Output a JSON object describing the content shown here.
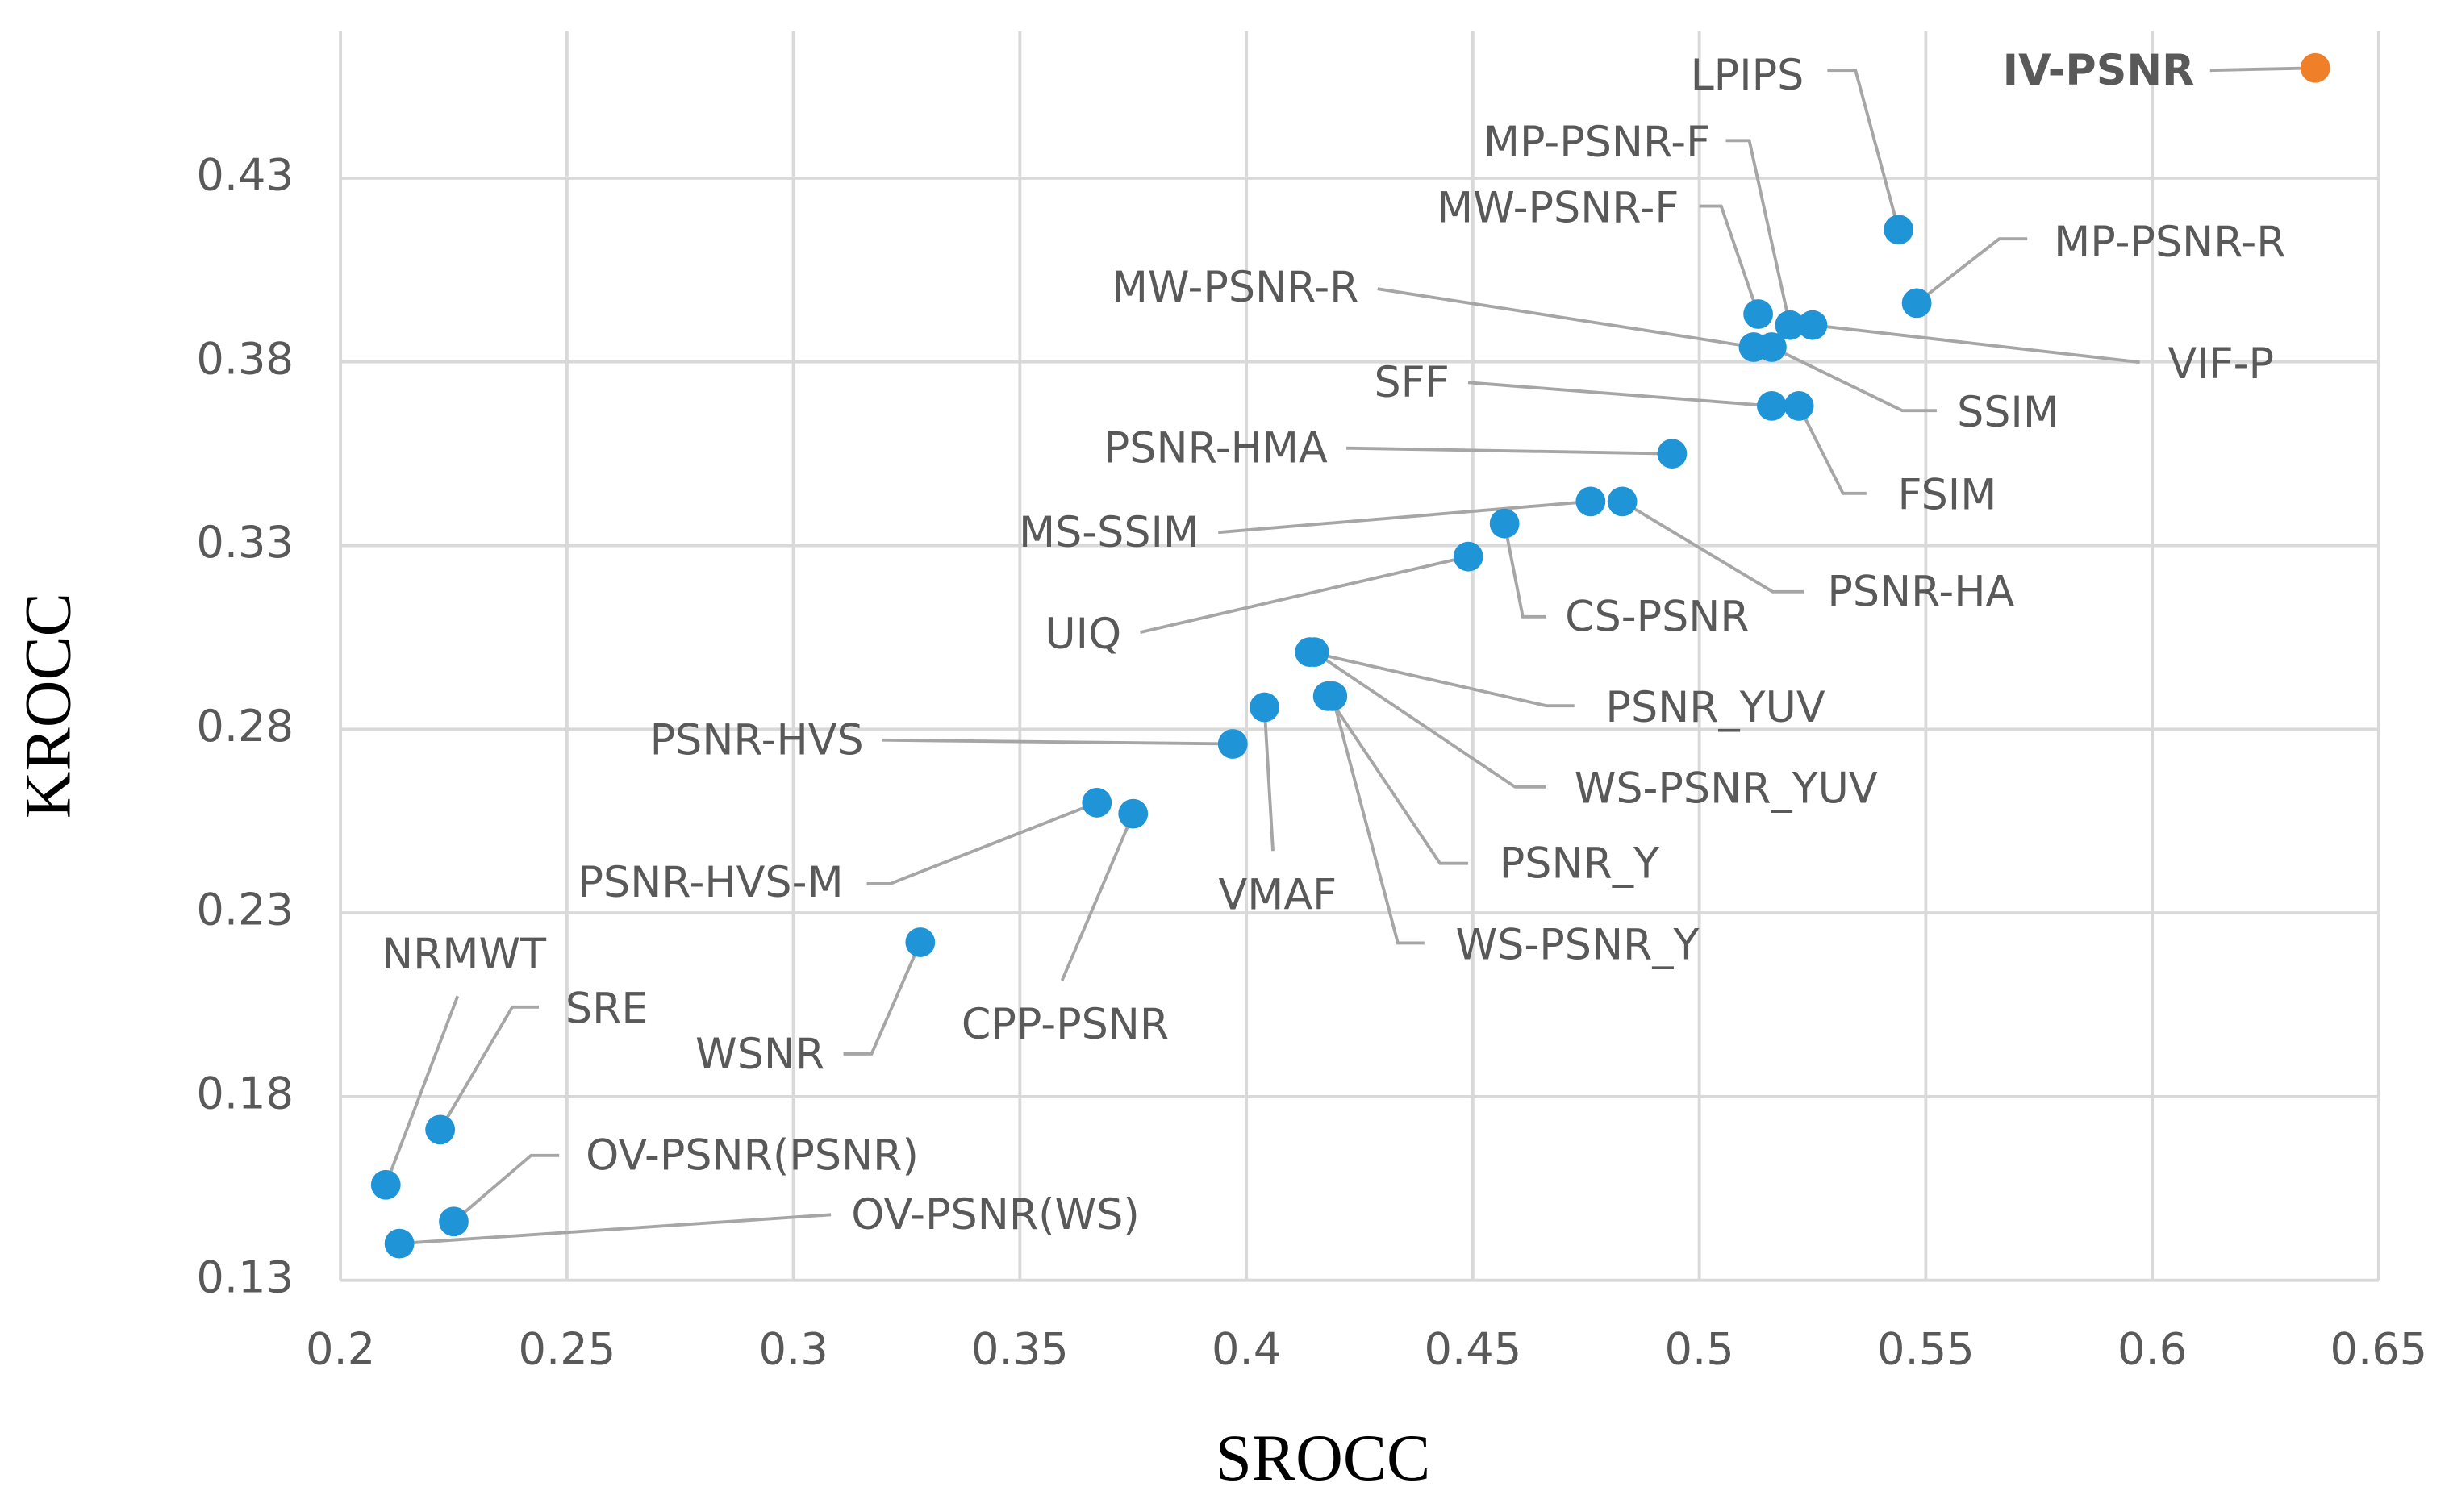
{
  "chart_data": {
    "type": "scatter",
    "x_label": "SROCC",
    "y_label": "KROCC",
    "xlim": [
      0.2,
      0.65
    ],
    "ylim": [
      0.13,
      0.47
    ],
    "xticks": [
      0.2,
      0.25,
      0.3,
      0.35,
      0.4,
      0.45,
      0.5,
      0.55,
      0.6,
      0.65
    ],
    "yticks": [
      0.13,
      0.18,
      0.23,
      0.28,
      0.33,
      0.38,
      0.43
    ],
    "grid": true,
    "series": [
      {
        "name": "IV-PSNR",
        "color": "#f07f2a",
        "x": [
          0.636
        ],
        "y": [
          0.46
        ]
      },
      {
        "name": "LPIPS",
        "color": "#1f94d6",
        "x": [
          0.544
        ],
        "y": [
          0.416
        ]
      },
      {
        "name": "MP-PSNR-F",
        "color": "#1f94d6",
        "x": [
          0.52
        ],
        "y": [
          0.39
        ]
      },
      {
        "name": "MW-PSNR-F",
        "color": "#1f94d6",
        "x": [
          0.513
        ],
        "y": [
          0.393
        ]
      },
      {
        "name": "MP-PSNR-R",
        "color": "#1f94d6",
        "x": [
          0.548
        ],
        "y": [
          0.396
        ]
      },
      {
        "name": "MW-PSNR-R",
        "color": "#1f94d6",
        "x": [
          0.512
        ],
        "y": [
          0.384
        ]
      },
      {
        "name": "VIF-P",
        "color": "#1f94d6",
        "x": [
          0.525
        ],
        "y": [
          0.39
        ]
      },
      {
        "name": "SSIM",
        "color": "#1f94d6",
        "x": [
          0.516
        ],
        "y": [
          0.384
        ]
      },
      {
        "name": "SFF",
        "color": "#1f94d6",
        "x": [
          0.516
        ],
        "y": [
          0.368
        ]
      },
      {
        "name": "FSIM",
        "color": "#1f94d6",
        "x": [
          0.522
        ],
        "y": [
          0.368
        ]
      },
      {
        "name": "PSNR-HMA",
        "color": "#1f94d6",
        "x": [
          0.494
        ],
        "y": [
          0.355
        ]
      },
      {
        "name": "PSNR-HA",
        "color": "#1f94d6",
        "x": [
          0.483
        ],
        "y": [
          0.342
        ]
      },
      {
        "name": "MS-SSIM",
        "color": "#1f94d6",
        "x": [
          0.476
        ],
        "y": [
          0.342
        ]
      },
      {
        "name": "CS-PSNR",
        "color": "#1f94d6",
        "x": [
          0.457
        ],
        "y": [
          0.336
        ]
      },
      {
        "name": "UIQ",
        "color": "#1f94d6",
        "x": [
          0.449
        ],
        "y": [
          0.327
        ]
      },
      {
        "name": "PSNR_YUV",
        "color": "#1f94d6",
        "x": [
          0.414
        ],
        "y": [
          0.301
        ]
      },
      {
        "name": "WS-PSNR_YUV",
        "color": "#1f94d6",
        "x": [
          0.415
        ],
        "y": [
          0.301
        ]
      },
      {
        "name": "PSNR_Y",
        "color": "#1f94d6",
        "x": [
          0.418
        ],
        "y": [
          0.289
        ]
      },
      {
        "name": "WS-PSNR_Y",
        "color": "#1f94d6",
        "x": [
          0.419
        ],
        "y": [
          0.289
        ]
      },
      {
        "name": "VMAF",
        "color": "#1f94d6",
        "x": [
          0.404
        ],
        "y": [
          0.286
        ]
      },
      {
        "name": "PSNR-HVS",
        "color": "#1f94d6",
        "x": [
          0.397
        ],
        "y": [
          0.276
        ]
      },
      {
        "name": "PSNR-HVS-M",
        "color": "#1f94d6",
        "x": [
          0.367
        ],
        "y": [
          0.26
        ]
      },
      {
        "name": "CPP-PSNR",
        "color": "#1f94d6",
        "x": [
          0.375
        ],
        "y": [
          0.257
        ]
      },
      {
        "name": "WSNR",
        "color": "#1f94d6",
        "x": [
          0.328
        ],
        "y": [
          0.222
        ]
      },
      {
        "name": "SRE",
        "color": "#1f94d6",
        "x": [
          0.222
        ],
        "y": [
          0.171
        ]
      },
      {
        "name": "NRMWT",
        "color": "#1f94d6",
        "x": [
          0.21
        ],
        "y": [
          0.156
        ]
      },
      {
        "name": "OV-PSNR(PSNR)",
        "color": "#1f94d6",
        "x": [
          0.225
        ],
        "y": [
          0.146
        ]
      },
      {
        "name": "OV-PSNR(WS)",
        "color": "#1f94d6",
        "x": [
          0.213
        ],
        "y": [
          0.14
        ]
      }
    ]
  }
}
